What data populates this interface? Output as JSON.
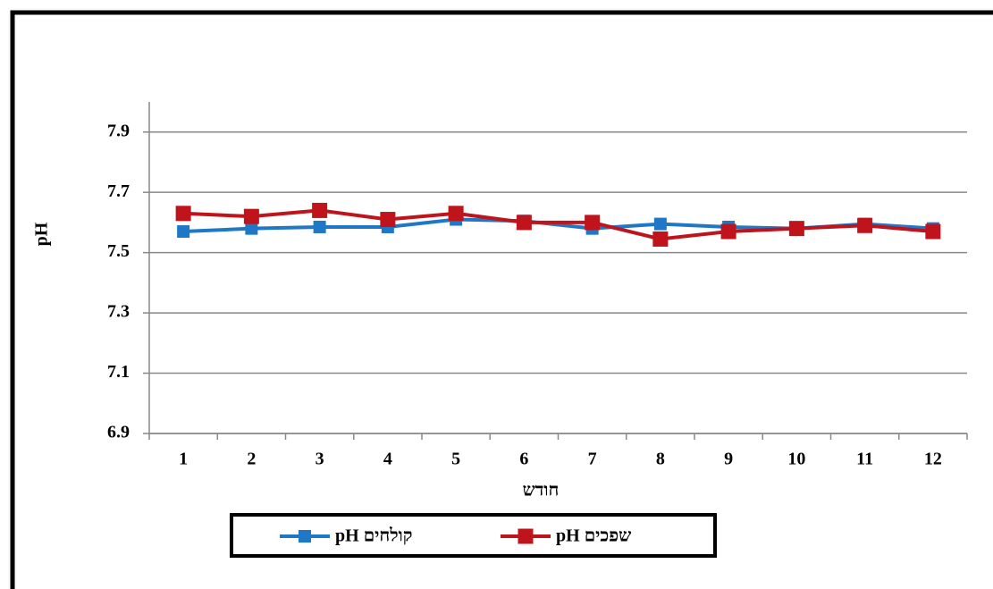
{
  "chart_data": {
    "type": "line",
    "x_label": "חודש",
    "y_label": "pH",
    "categories": [
      "1",
      "2",
      "3",
      "4",
      "5",
      "6",
      "7",
      "8",
      "9",
      "10",
      "11",
      "12"
    ],
    "series": [
      {
        "name": "קולחים pH",
        "color": "#1f77c8",
        "values": [
          7.57,
          7.58,
          7.585,
          7.585,
          7.61,
          7.605,
          7.58,
          7.595,
          7.585,
          7.58,
          7.595,
          7.58
        ]
      },
      {
        "name": "שפכים pH",
        "color": "#c0141c",
        "values": [
          7.63,
          7.62,
          7.64,
          7.61,
          7.63,
          7.6,
          7.6,
          7.545,
          7.57,
          7.58,
          7.59,
          7.57
        ]
      }
    ],
    "ylim": [
      6.9,
      8.0
    ],
    "yticks": [
      6.9,
      7.1,
      7.3,
      7.5,
      7.7,
      7.9
    ],
    "grid": true
  }
}
